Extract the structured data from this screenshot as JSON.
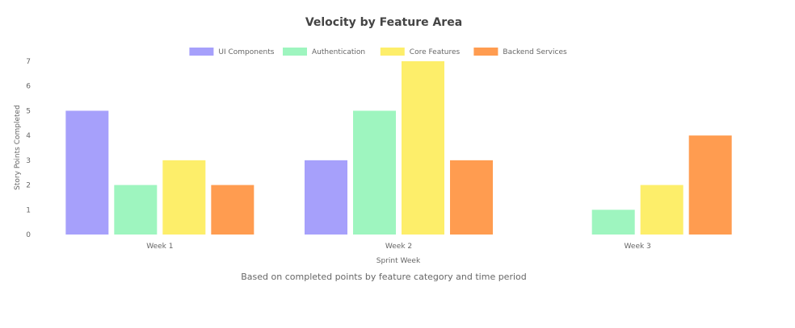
{
  "chart_data": {
    "type": "bar",
    "title": "Velocity by Feature Area",
    "subtitle": "Based on completed points by feature category and time period",
    "xlabel": "Sprint Week",
    "ylabel": "Story Points Completed",
    "categories": [
      "Week 1",
      "Week 2",
      "Week 3"
    ],
    "ylim": [
      0,
      7
    ],
    "yticks": [
      0,
      1,
      2,
      3,
      4,
      5,
      6,
      7
    ],
    "legend_position": "top-center",
    "grid": false,
    "series": [
      {
        "name": "UI Components",
        "color": "#a6a0fb",
        "values": [
          5,
          3,
          0
        ]
      },
      {
        "name": "Authentication",
        "color": "#9ef5bf",
        "values": [
          2,
          5,
          1
        ]
      },
      {
        "name": "Core Features",
        "color": "#fdee6a",
        "values": [
          3,
          7,
          2
        ]
      },
      {
        "name": "Backend Services",
        "color": "#ff9c50",
        "values": [
          2,
          3,
          4
        ]
      }
    ]
  }
}
